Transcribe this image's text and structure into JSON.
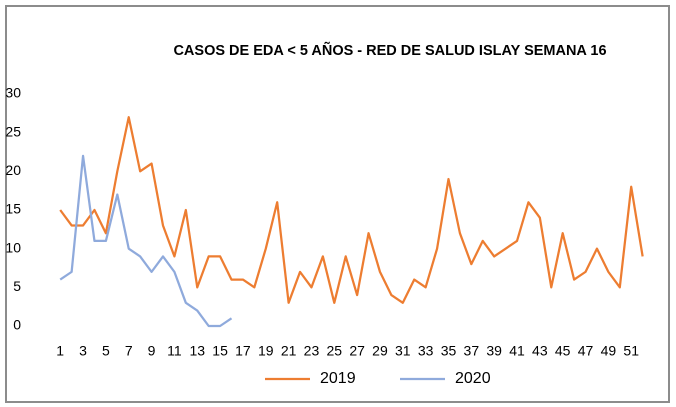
{
  "chart_data": {
    "type": "line",
    "title": "CASOS DE EDA < 5 AÑOS - RED DE SALUD ISLAY SEMANA 16",
    "categories": [
      1,
      null,
      3,
      null,
      5,
      null,
      7,
      null,
      9,
      null,
      11,
      null,
      13,
      null,
      15,
      null,
      17,
      null,
      19,
      null,
      21,
      null,
      23,
      null,
      25,
      null,
      27,
      null,
      29,
      null,
      31,
      null,
      33,
      null,
      35,
      null,
      37,
      null,
      39,
      null,
      41,
      null,
      43,
      null,
      45,
      null,
      47,
      null,
      49,
      null,
      51,
      null
    ],
    "series": [
      {
        "name": "2019",
        "color": "#ed7d31",
        "values": [
          15,
          13,
          13,
          15,
          12,
          20,
          27,
          20,
          21,
          13,
          9,
          15,
          5,
          9,
          9,
          6,
          6,
          5,
          10,
          16,
          3,
          7,
          5,
          9,
          3,
          9,
          4,
          12,
          7,
          4,
          3,
          6,
          5,
          10,
          19,
          12,
          8,
          11,
          9,
          10,
          11,
          16,
          14,
          5,
          12,
          6,
          7,
          10,
          7,
          5,
          18,
          9
        ]
      },
      {
        "name": "2020",
        "color": "#8faadc",
        "values": [
          6,
          7,
          22,
          11,
          11,
          17,
          10,
          9,
          7,
          9,
          7,
          3,
          2,
          0,
          0,
          1,
          null,
          null,
          null,
          null,
          null,
          null,
          null,
          null,
          null,
          null,
          null,
          null,
          null,
          null,
          null,
          null,
          null,
          null,
          null,
          null,
          null,
          null,
          null,
          null,
          null,
          null,
          null,
          null,
          null,
          null,
          null,
          null,
          null,
          null,
          null,
          null
        ]
      }
    ],
    "ylim": [
      0,
      30
    ],
    "yticks": [
      0,
      5,
      10,
      15,
      20,
      25,
      30
    ],
    "grid": false,
    "legend": "bottom"
  }
}
